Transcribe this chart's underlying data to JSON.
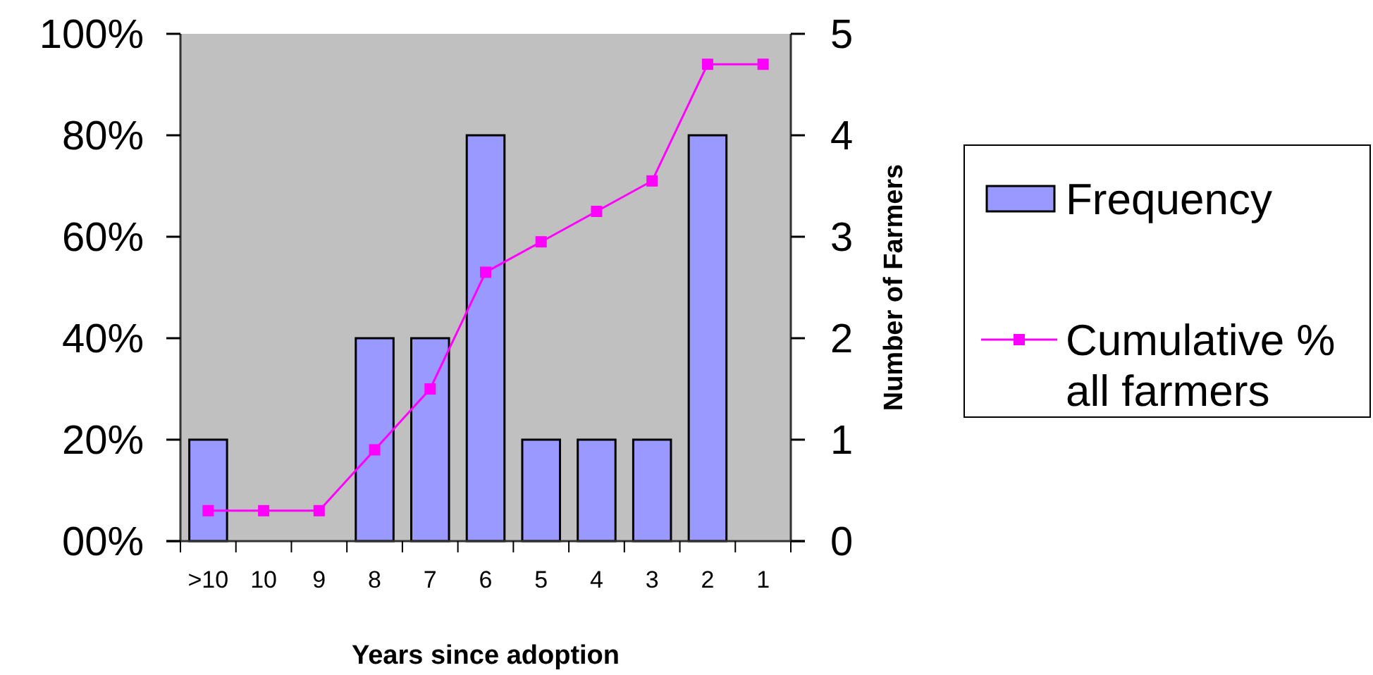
{
  "chart_data": {
    "type": "bar",
    "xlabel": "Years since adoption",
    "y2label": "Number of Farmers",
    "categories": [
      ">10",
      "10",
      "9",
      "8",
      "7",
      "6",
      "5",
      "4",
      "3",
      "2",
      "1"
    ],
    "series": [
      {
        "name": "Frequency",
        "axis": "y2",
        "color": "#9999ff",
        "values": [
          1,
          0,
          0,
          2,
          2,
          4,
          1,
          1,
          1,
          4,
          0
        ]
      },
      {
        "name": "Cumulative % all farmers",
        "type": "line",
        "axis": "y",
        "color": "#ff00ff",
        "marker": "square",
        "values": [
          6,
          6,
          6,
          18,
          30,
          53,
          59,
          65,
          71,
          94,
          94
        ]
      }
    ],
    "ylim": [
      0,
      100
    ],
    "yticks": [
      {
        "value": 0,
        "label": "00%"
      },
      {
        "value": 20,
        "label": "20%"
      },
      {
        "value": 40,
        "label": "40%"
      },
      {
        "value": 60,
        "label": "60%"
      },
      {
        "value": 80,
        "label": "80%"
      },
      {
        "value": 100,
        "label": "100%"
      }
    ],
    "y2lim": [
      0,
      5
    ],
    "y2ticks": [
      0,
      1,
      2,
      3,
      4,
      5
    ],
    "grid": false,
    "legend": "right"
  }
}
